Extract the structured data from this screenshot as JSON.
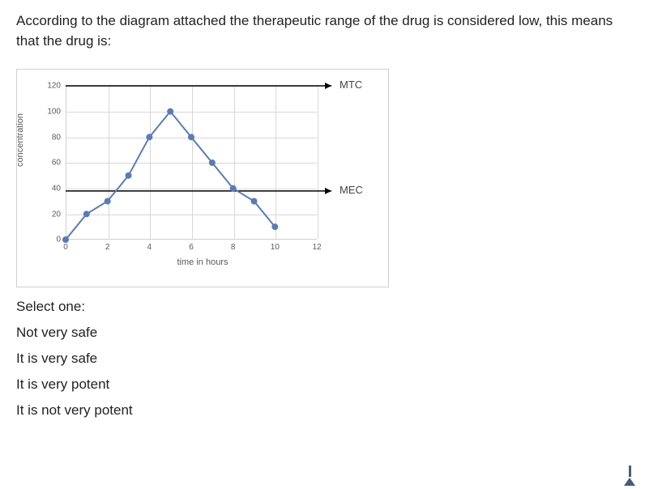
{
  "question_text": "According to the diagram attached the therapeutic range of the drug is considered low, this means that the drug is:",
  "chart": {
    "type": "line",
    "xlabel": "time in hours",
    "ylabel": "concentration",
    "xlim": [
      0,
      12
    ],
    "ylim": [
      0,
      120
    ],
    "yticks": [
      0,
      20,
      40,
      60,
      80,
      100,
      120
    ],
    "xticks": [
      0,
      2,
      4,
      6,
      8,
      10,
      12
    ],
    "grid_color": "#d8d8d8",
    "axis_color": "#d0d0d0",
    "border_color": "#cfcfcf",
    "background_color": "#ffffff",
    "label_color": "#5a5a5a",
    "label_fontsize": 11,
    "tick_fontsize": 10,
    "line_color": "#5b7bb4",
    "line_width": 2,
    "marker_color": "#5b7bb4",
    "marker_size": 4,
    "reference_line_color": "#000000",
    "reference_line_width": 1.5,
    "series": {
      "x": [
        0,
        1,
        2,
        3,
        4,
        5,
        6,
        7,
        8,
        9,
        10
      ],
      "y": [
        0,
        20,
        30,
        50,
        80,
        100,
        80,
        60,
        40,
        30,
        10
      ]
    },
    "reference_lines": [
      {
        "y": 120,
        "label": "MTC"
      },
      {
        "y": 38,
        "label": "MEC"
      }
    ]
  },
  "select_label": "Select one:",
  "options": [
    "Not very safe",
    "It is very safe",
    "It is very potent",
    "It is not very potent"
  ],
  "indicator_color": "#4a5a78"
}
